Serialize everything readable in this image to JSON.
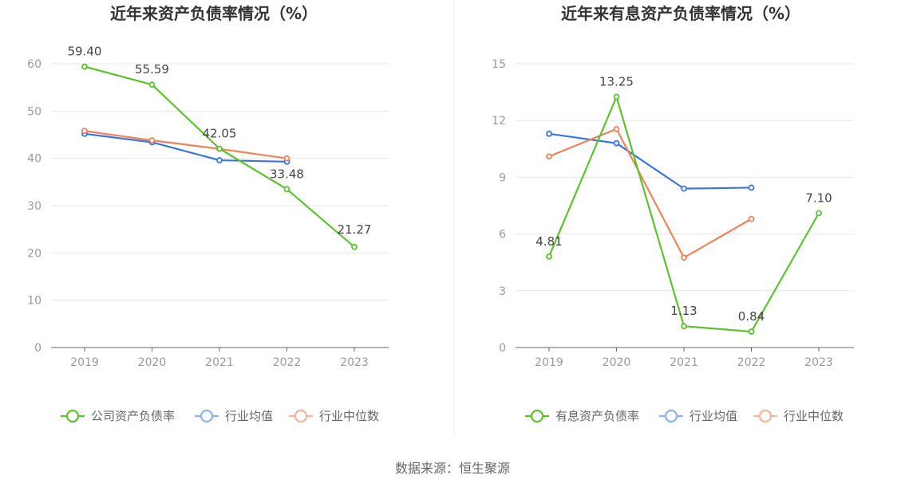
{
  "source": "数据来源：恒生聚源",
  "chart_data": [
    {
      "type": "line",
      "title": "近年来资产负债率情况（%）",
      "categories": [
        "2019",
        "2020",
        "2021",
        "2022",
        "2023"
      ],
      "ylim": [
        0,
        60
      ],
      "yticks": [
        0,
        10,
        20,
        30,
        40,
        50,
        60
      ],
      "grid": true,
      "legend": "bottom",
      "series": [
        {
          "name": "公司资产负债率",
          "color": "#5cc22e",
          "values": [
            59.4,
            55.59,
            42.05,
            33.48,
            21.27
          ],
          "labels": [
            "59.40",
            "55.59",
            "42.05",
            "33.48",
            "21.27"
          ]
        },
        {
          "name": "行业均值",
          "color": "#3a74e0",
          "values": [
            45.2,
            43.4,
            39.6,
            39.3,
            null
          ]
        },
        {
          "name": "行业中位数",
          "color": "#ee8356",
          "values": [
            45.8,
            43.8,
            42.0,
            40.0,
            null
          ]
        }
      ]
    },
    {
      "type": "line",
      "title": "近年来有息资产负债率情况（%）",
      "categories": [
        "2019",
        "2020",
        "2021",
        "2022",
        "2023"
      ],
      "ylim": [
        0,
        15
      ],
      "yticks": [
        0,
        3,
        6,
        9,
        12,
        15
      ],
      "grid": true,
      "legend": "bottom",
      "series": [
        {
          "name": "有息资产负债率",
          "color": "#5cc22e",
          "values": [
            4.81,
            13.25,
            1.13,
            0.84,
            7.1
          ],
          "labels": [
            "4.81",
            "13.25",
            "1.13",
            "0.84",
            "7.10"
          ]
        },
        {
          "name": "行业均值",
          "color": "#3a74e0",
          "values": [
            11.3,
            10.8,
            8.4,
            8.45,
            null
          ]
        },
        {
          "name": "行业中位数",
          "color": "#ee8356",
          "values": [
            10.1,
            11.55,
            4.75,
            6.8,
            null
          ]
        }
      ]
    }
  ]
}
